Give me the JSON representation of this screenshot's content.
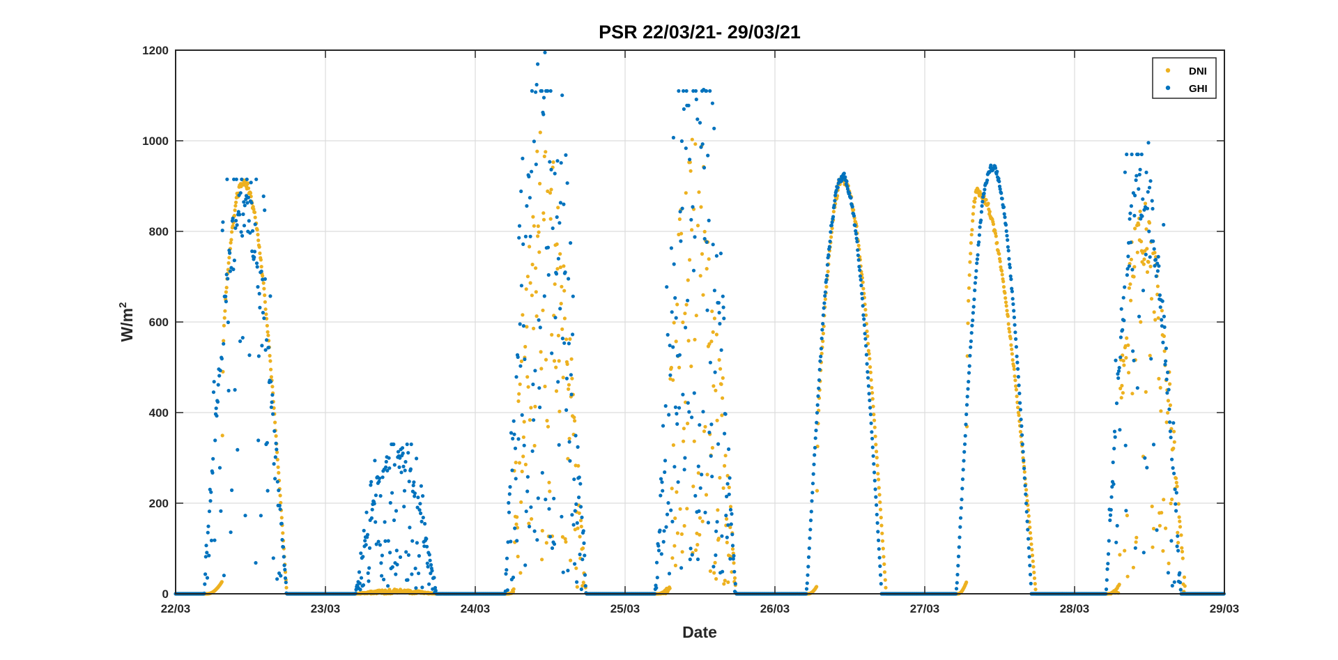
{
  "chart_data": {
    "type": "scatter",
    "title": "PSR 22/03/21- 29/03/21",
    "xlabel": "Date",
    "ylabel": "W/m",
    "ylabel_superscript": "2",
    "x_ticks": [
      "22/03",
      "23/03",
      "24/03",
      "25/03",
      "26/03",
      "27/03",
      "28/03",
      "29/03"
    ],
    "xlim": [
      0,
      7
    ],
    "x_unit": "days since 22/03",
    "ylim": [
      0,
      1200
    ],
    "y_ticks": [
      0,
      200,
      400,
      600,
      800,
      1000,
      1200
    ],
    "grid": true,
    "legend_position": "top-right",
    "colors": {
      "DNI": "#EDB120",
      "GHI": "#0072BD"
    },
    "series": [
      {
        "name": "DNI",
        "days": [
          {
            "start": 0.21,
            "end": 0.74,
            "peak": 910,
            "peak_at": 0.45,
            "onset": 0.31,
            "clear": true,
            "scatter": 0.35
          },
          {
            "start": 0.2,
            "end": 0.74,
            "peak": 10,
            "peak_at": 0.47,
            "onset": 0.2,
            "clear": false,
            "scatter": 0.2
          },
          {
            "start": 0.22,
            "end": 0.74,
            "peak": 940,
            "peak_at": 0.45,
            "onset": 0.26,
            "clear": false,
            "scatter": 0.85
          },
          {
            "start": 0.22,
            "end": 0.74,
            "peak": 960,
            "peak_at": 0.45,
            "onset": 0.3,
            "clear": false,
            "scatter": 0.85
          },
          {
            "start": 0.22,
            "end": 0.74,
            "peak": 915,
            "peak_at": 0.45,
            "onset": 0.28,
            "clear": true,
            "scatter": 0.0
          },
          {
            "start": 0.22,
            "end": 0.74,
            "peak": 890,
            "peak_at": 0.35,
            "onset": 0.28,
            "clear": true,
            "scatter": 0.05
          },
          {
            "start": 0.22,
            "end": 0.74,
            "peak": 850,
            "peak_at": 0.45,
            "onset": 0.3,
            "clear": false,
            "scatter": 0.45
          }
        ]
      },
      {
        "name": "GHI",
        "days": [
          {
            "start": 0.19,
            "end": 0.74,
            "peak": 915,
            "peak_at": 0.45,
            "clear": false,
            "scatter": 0.35
          },
          {
            "start": 0.2,
            "end": 0.74,
            "peak": 330,
            "peak_at": 0.47,
            "clear": false,
            "scatter": 0.7
          },
          {
            "start": 0.2,
            "end": 0.74,
            "peak": 1110,
            "peak_at": 0.45,
            "clear": false,
            "scatter": 0.9
          },
          {
            "start": 0.2,
            "end": 0.74,
            "peak": 1110,
            "peak_at": 0.45,
            "clear": false,
            "scatter": 0.9
          },
          {
            "start": 0.21,
            "end": 0.71,
            "peak": 920,
            "peak_at": 0.45,
            "clear": true,
            "scatter": 0.0
          },
          {
            "start": 0.21,
            "end": 0.71,
            "peak": 945,
            "peak_at": 0.45,
            "clear": true,
            "scatter": 0.0
          },
          {
            "start": 0.21,
            "end": 0.71,
            "peak": 970,
            "peak_at": 0.45,
            "clear": false,
            "scatter": 0.4
          }
        ]
      }
    ]
  }
}
